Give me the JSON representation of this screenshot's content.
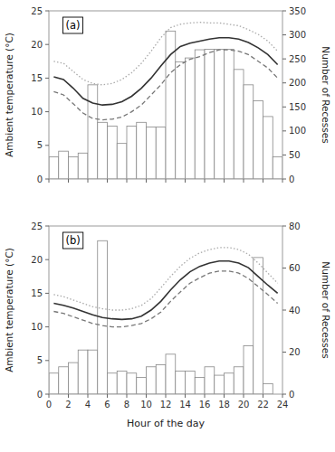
{
  "chart_data": [
    {
      "type": "bar",
      "title": "(a)",
      "x": [
        0,
        1,
        2,
        3,
        4,
        5,
        6,
        7,
        8,
        9,
        10,
        11,
        12,
        13,
        14,
        15,
        16,
        17,
        18,
        19,
        20,
        21,
        22,
        23
      ],
      "xlim": [
        0,
        24
      ],
      "xticks": [
        0,
        2,
        4,
        6,
        8,
        10,
        12,
        14,
        16,
        18,
        20,
        22,
        24
      ],
      "y_label": "Ambient temperature (°C)",
      "ylim": [
        0,
        25
      ],
      "yticks": [
        0,
        5,
        10,
        15,
        20,
        25
      ],
      "y2_label": "Number of Recesses",
      "y2lim": [
        0,
        350
      ],
      "y2ticks": [
        0,
        50,
        100,
        150,
        200,
        250,
        300,
        350
      ],
      "tick_labels": "y",
      "grid": false,
      "series": [
        {
          "type": "bar",
          "axis": "y2",
          "color": "white",
          "values": [
            46,
            58,
            46,
            54,
            196,
            118,
            110,
            74,
            110,
            118,
            108,
            108,
            308,
            244,
            252,
            269,
            270,
            270,
            270,
            228,
            196,
            163,
            130,
            46
          ]
        },
        {
          "type": "line",
          "color": "#333333",
          "line_style": "solid",
          "values": [
            15.2,
            14.8,
            13.5,
            12.0,
            11.3,
            11.0,
            11.1,
            11.5,
            12.3,
            13.5,
            15.0,
            16.8,
            18.5,
            19.7,
            20.2,
            20.5,
            20.8,
            21.0,
            21.0,
            20.8,
            20.3,
            19.5,
            18.5,
            17.0
          ]
        },
        {
          "type": "line",
          "color": "#aaaaaa",
          "line_style": "dotted",
          "values": [
            17.5,
            17.2,
            16.0,
            14.8,
            14.2,
            14.0,
            14.2,
            14.8,
            15.8,
            17.2,
            19.0,
            21.0,
            22.5,
            23.0,
            23.2,
            23.3,
            23.2,
            23.2,
            23.0,
            22.8,
            22.2,
            21.5,
            20.5,
            19.0
          ]
        },
        {
          "type": "line",
          "color": "#777777",
          "line_style": "dashed",
          "values": [
            13.0,
            12.5,
            11.2,
            9.8,
            9.0,
            8.8,
            8.9,
            9.2,
            10.0,
            11.0,
            12.5,
            14.0,
            15.8,
            17.0,
            17.8,
            18.2,
            18.8,
            19.2,
            19.2,
            19.0,
            18.5,
            17.5,
            16.5,
            15.0
          ]
        }
      ]
    },
    {
      "type": "bar",
      "title": "(b)",
      "x": [
        0,
        1,
        2,
        3,
        4,
        5,
        6,
        7,
        8,
        9,
        10,
        11,
        12,
        13,
        14,
        15,
        16,
        17,
        18,
        19,
        20,
        21,
        22,
        23
      ],
      "x_label": "Hour of the day",
      "xlim": [
        0,
        24
      ],
      "xticks": [
        0,
        2,
        4,
        6,
        8,
        10,
        12,
        14,
        16,
        18,
        20,
        22,
        24
      ],
      "y_label": "Ambient temperature (°C)",
      "ylim": [
        0,
        25
      ],
      "yticks": [
        0,
        5,
        10,
        15,
        20,
        25
      ],
      "y2_label": "Number of Recesses",
      "y2lim": [
        0,
        80
      ],
      "y2ticks": [
        0,
        20,
        40,
        60,
        80
      ],
      "grid": false,
      "series": [
        {
          "type": "bar",
          "axis": "y2",
          "color": "white",
          "values": [
            10,
            13,
            15,
            21,
            21,
            73,
            10,
            11,
            10,
            8,
            13,
            14,
            19,
            11,
            11,
            8,
            13,
            9,
            10,
            13,
            23,
            65,
            5,
            0
          ]
        },
        {
          "type": "line",
          "color": "#333333",
          "line_style": "solid",
          "values": [
            13.5,
            13.2,
            12.8,
            12.3,
            11.8,
            11.4,
            11.2,
            11.1,
            11.2,
            11.6,
            12.5,
            13.8,
            15.5,
            17.0,
            18.2,
            19.0,
            19.5,
            19.8,
            19.8,
            19.5,
            18.8,
            17.5,
            16.2,
            15.0
          ]
        },
        {
          "type": "line",
          "color": "#aaaaaa",
          "line_style": "dotted",
          "values": [
            14.8,
            14.5,
            14.0,
            13.5,
            13.0,
            12.7,
            12.5,
            12.5,
            12.7,
            13.2,
            14.2,
            15.8,
            17.5,
            19.0,
            20.2,
            21.0,
            21.5,
            21.8,
            21.8,
            21.5,
            20.8,
            19.5,
            18.0,
            16.5
          ]
        },
        {
          "type": "line",
          "color": "#777777",
          "line_style": "dashed",
          "values": [
            12.3,
            12.0,
            11.5,
            11.0,
            10.5,
            10.2,
            10.0,
            10.0,
            10.2,
            10.5,
            11.2,
            12.2,
            13.8,
            15.2,
            16.5,
            17.3,
            18.0,
            18.3,
            18.3,
            18.0,
            17.2,
            16.0,
            14.8,
            13.5
          ]
        }
      ]
    }
  ]
}
